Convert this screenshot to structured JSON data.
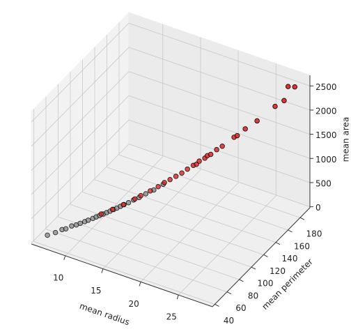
{
  "chart_data": {
    "type": "scatter",
    "xlabel": "mean radius",
    "ylabel": "mean perimeter",
    "zlabel": "mean area",
    "xlim": [
      5.5,
      29.5
    ],
    "ylim": [
      36,
      196
    ],
    "zlim": [
      -20,
      2720
    ],
    "xticks": [
      10,
      15,
      20,
      25
    ],
    "yticks": [
      40,
      60,
      80,
      100,
      120,
      140,
      160,
      180
    ],
    "zticks": [
      0,
      500,
      1000,
      1500,
      2000,
      2500
    ],
    "grid": true,
    "series": [
      {
        "color": "#808080",
        "x": [
          7.0,
          7.7,
          8.2,
          8.6,
          9.0,
          9.5,
          9.8,
          10.2,
          10.5,
          10.9,
          11.2,
          11.5,
          11.8,
          12.1,
          12.4,
          12.7,
          13.0,
          13.3,
          13.6,
          14.0,
          14.4,
          14.9,
          15.5,
          16.2,
          17.0
        ],
        "y": [
          43.8,
          48.3,
          52.9,
          54.3,
          58.8,
          60.3,
          63,
          65.5,
          67.4,
          70,
          71.8,
          73.7,
          76,
          77.8,
          79.8,
          81.9,
          83.5,
          85.7,
          87.8,
          90.3,
          93.6,
          96.5,
          100,
          104.5,
          110
        ],
        "z": [
          143.5,
          178,
          208,
          227,
          250,
          280,
          295,
          320,
          340,
          365,
          390,
          410,
          428,
          450,
          472,
          495,
          520,
          545,
          570,
          600,
          635,
          675,
          740,
          800,
          890
        ]
      },
      {
        "color": "#dd1c1c",
        "x": [
          11.4,
          12.5,
          13.5,
          14.5,
          15.0,
          15.8,
          16.5,
          17.0,
          17.5,
          18.0,
          18.5,
          19.0,
          19.5,
          19.8,
          20.0,
          20.5,
          20.6,
          21.0,
          21.5,
          22.0,
          23.0,
          23.3,
          24.0,
          25.0,
          26.5,
          27.2,
          27.4,
          28.1
        ],
        "y": [
          77.6,
          82.6,
          88,
          94.5,
          98,
          103.6,
          108,
          112,
          115,
          118.5,
          122,
          125,
          128.5,
          130,
          132,
          135,
          137.8,
          138.5,
          142,
          145,
          152,
          153.5,
          158,
          165,
          176,
          182.1,
          186.2,
          188.5
        ],
        "z": [
          386,
          477,
          560,
          650,
          700,
          770,
          840,
          900,
          950,
          1000,
          1050,
          1120,
          1180,
          1200,
          1250,
          1300,
          1320,
          1360,
          1440,
          1500,
          1650,
          1680,
          1800,
          1930,
          2170,
          2250,
          2499,
          2501
        ]
      }
    ]
  }
}
